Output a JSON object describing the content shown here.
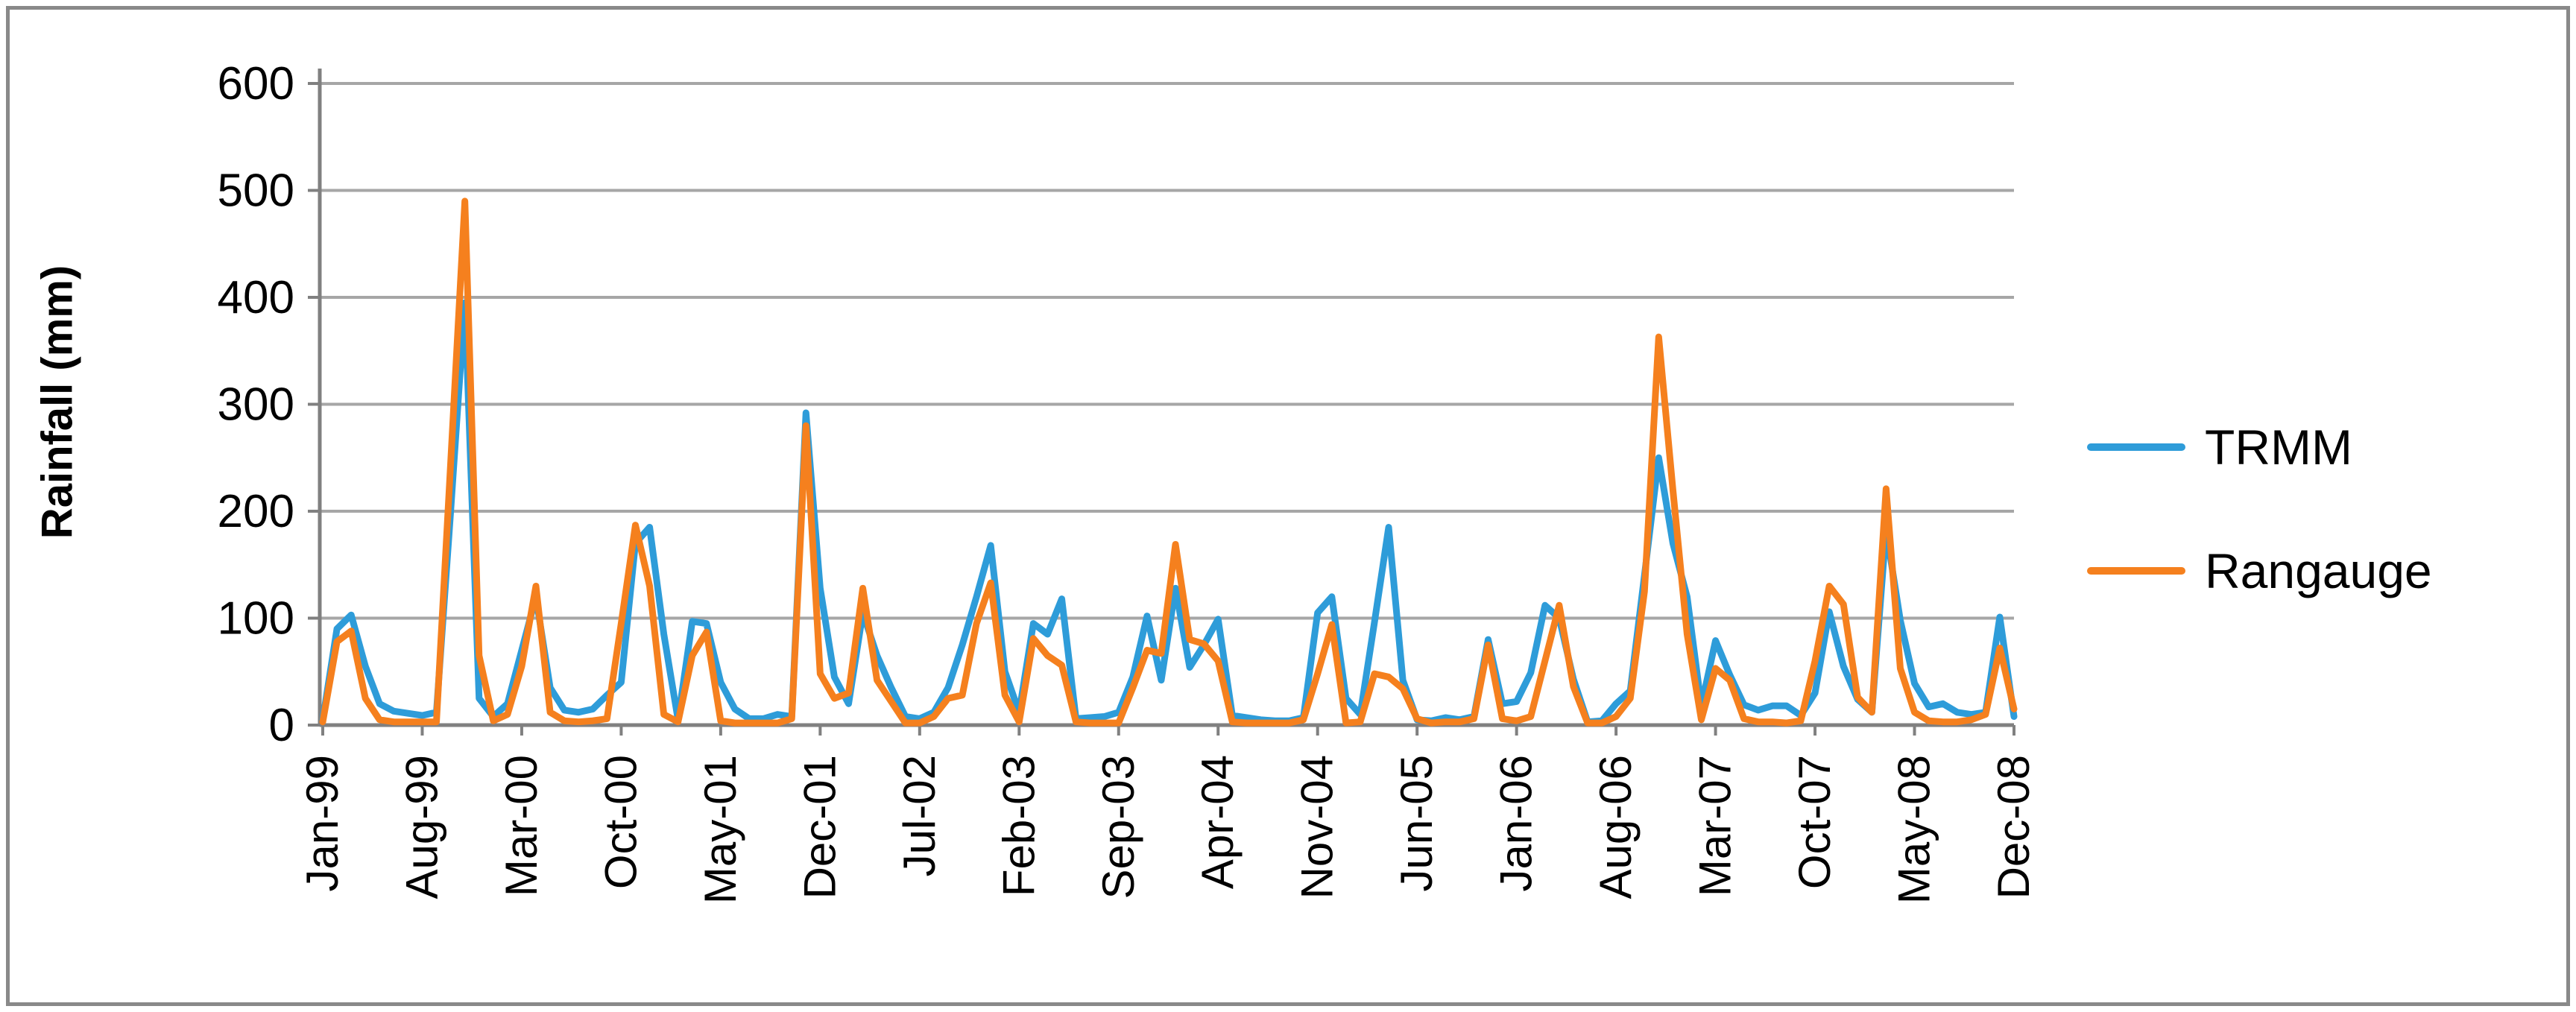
{
  "figure": {
    "ylabel": "Rainfall (mm)"
  },
  "chart_data": {
    "type": "line",
    "title": "",
    "xlabel": "",
    "ylabel": "Rainfall (mm)",
    "ylim": [
      0,
      600
    ],
    "ytick_interval": 100,
    "yticks": [
      0,
      100,
      200,
      300,
      400,
      500,
      600
    ],
    "grid": "horizontal",
    "legend_position": "right",
    "grid_color": "#A6A6A6",
    "axis_color": "#808080",
    "xtick_labels_shown": [
      "Jan-99",
      "Aug-99",
      "Mar-00",
      "Oct-00",
      "May-01",
      "Dec-01",
      "Jul-02",
      "Feb-03",
      "Sep-03",
      "Apr-04",
      "Nov-04",
      "Jun-05",
      "Jan-06",
      "Aug-06",
      "Mar-07",
      "Oct-07",
      "May-08",
      "Dec-08"
    ],
    "xtick_label_step": 7,
    "categories": [
      "Jan-99",
      "Feb-99",
      "Mar-99",
      "Apr-99",
      "May-99",
      "Jun-99",
      "Jul-99",
      "Aug-99",
      "Sep-99",
      "Oct-99",
      "Nov-99",
      "Dec-99",
      "Jan-00",
      "Feb-00",
      "Mar-00",
      "Apr-00",
      "May-00",
      "Jun-00",
      "Jul-00",
      "Aug-00",
      "Sep-00",
      "Oct-00",
      "Nov-00",
      "Dec-00",
      "Jan-01",
      "Feb-01",
      "Mar-01",
      "Apr-01",
      "May-01",
      "Jun-01",
      "Jul-01",
      "Aug-01",
      "Sep-01",
      "Oct-01",
      "Nov-01",
      "Dec-01",
      "Jan-02",
      "Feb-02",
      "Mar-02",
      "Apr-02",
      "May-02",
      "Jun-02",
      "Jul-02",
      "Aug-02",
      "Sep-02",
      "Oct-02",
      "Nov-02",
      "Dec-02",
      "Jan-03",
      "Feb-03",
      "Mar-03",
      "Apr-03",
      "May-03",
      "Jun-03",
      "Jul-03",
      "Aug-03",
      "Sep-03",
      "Oct-03",
      "Nov-03",
      "Dec-03",
      "Jan-04",
      "Feb-04",
      "Mar-04",
      "Apr-04",
      "May-04",
      "Jun-04",
      "Jul-04",
      "Aug-04",
      "Sep-04",
      "Oct-04",
      "Nov-04",
      "Dec-04",
      "Jan-05",
      "Feb-05",
      "Mar-05",
      "Apr-05",
      "May-05",
      "Jun-05",
      "Jul-05",
      "Aug-05",
      "Sep-05",
      "Oct-05",
      "Nov-05",
      "Dec-05",
      "Jan-06",
      "Feb-06",
      "Mar-06",
      "Apr-06",
      "May-06",
      "Jun-06",
      "Jul-06",
      "Aug-06",
      "Sep-06",
      "Oct-06",
      "Nov-06",
      "Dec-06",
      "Jan-07",
      "Feb-07",
      "Mar-07",
      "Apr-07",
      "May-07",
      "Jun-07",
      "Jul-07",
      "Aug-07",
      "Sep-07",
      "Oct-07",
      "Nov-07",
      "Dec-07",
      "Jan-08",
      "Feb-08",
      "Mar-08",
      "Apr-08",
      "May-08",
      "Jun-08",
      "Jul-08",
      "Aug-08",
      "Sep-08",
      "Oct-08",
      "Nov-08",
      "Dec-08"
    ],
    "series": [
      {
        "name": "TRMM",
        "color": "#2E9CD9",
        "values": [
          5,
          90,
          103,
          55,
          20,
          13,
          11,
          9,
          12,
          200,
          395,
          25,
          8,
          20,
          70,
          120,
          35,
          14,
          12,
          15,
          28,
          40,
          170,
          185,
          85,
          5,
          97,
          95,
          40,
          15,
          6,
          6,
          10,
          8,
          292,
          128,
          45,
          20,
          105,
          65,
          35,
          8,
          6,
          12,
          35,
          75,
          120,
          168,
          50,
          12,
          95,
          85,
          118,
          6,
          7,
          8,
          12,
          45,
          102,
          42,
          128,
          54,
          75,
          99,
          9,
          7,
          5,
          4,
          4,
          7,
          105,
          120,
          25,
          10,
          96,
          185,
          42,
          5,
          4,
          7,
          5,
          8,
          80,
          20,
          22,
          49,
          112,
          100,
          43,
          3,
          4,
          20,
          32,
          140,
          250,
          170,
          120,
          18,
          79,
          47,
          19,
          14,
          18,
          18,
          9,
          30,
          106,
          55,
          24,
          12,
          183,
          98,
          39,
          17,
          20,
          12,
          10,
          12,
          101,
          8
        ]
      },
      {
        "name": "Rangauge",
        "color": "#F5801E",
        "values": [
          3,
          78,
          88,
          25,
          5,
          3,
          3,
          3,
          3,
          245,
          490,
          65,
          4,
          10,
          55,
          130,
          12,
          4,
          3,
          4,
          6,
          95,
          187,
          130,
          10,
          3,
          65,
          87,
          4,
          2,
          2,
          2,
          2,
          6,
          280,
          48,
          25,
          30,
          128,
          42,
          22,
          2,
          2,
          8,
          25,
          28,
          95,
          133,
          28,
          3,
          81,
          65,
          56,
          3,
          2,
          2,
          2,
          35,
          70,
          67,
          169,
          80,
          76,
          60,
          3,
          2,
          2,
          2,
          2,
          5,
          48,
          94,
          2,
          3,
          48,
          45,
          34,
          6,
          2,
          3,
          3,
          6,
          75,
          6,
          4,
          8,
          60,
          112,
          36,
          2,
          2,
          8,
          25,
          125,
          363,
          220,
          85,
          5,
          53,
          42,
          6,
          3,
          3,
          2,
          4,
          60,
          130,
          113,
          26,
          12,
          221,
          53,
          12,
          4,
          3,
          3,
          5,
          10,
          72,
          15
        ]
      }
    ]
  }
}
